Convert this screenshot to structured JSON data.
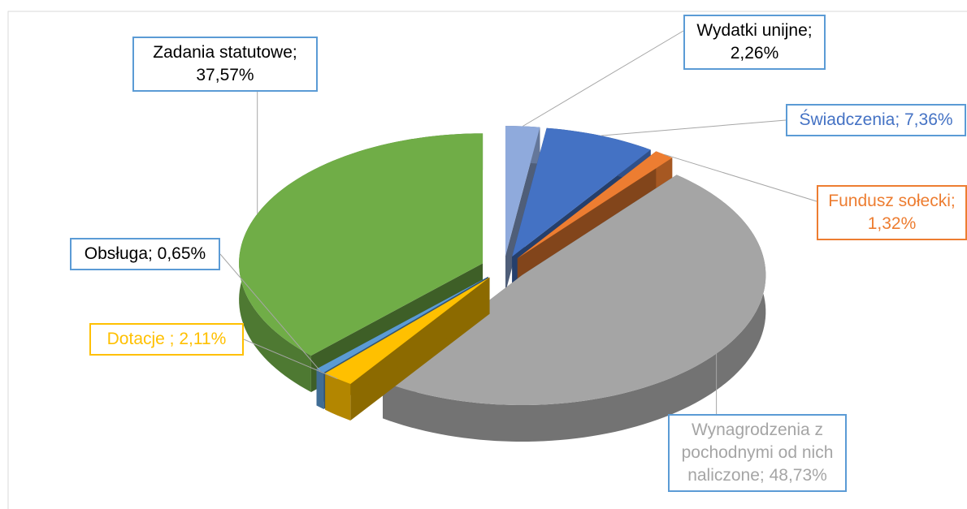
{
  "chart_data": {
    "type": "pie3d",
    "value_labels": [
      "Wydatki unijne; 2,26%",
      "Świadczenia; 7,36%",
      "Fundusz sołecki; 1,32%",
      "Wynagrodzenia z pochodnymi od nich naliczone; 48,73%",
      "Dotacje ; 2,11%",
      "Obsługa; 0,65%",
      "Zadania statutowe; 37,57%"
    ],
    "values": [
      2.26,
      7.36,
      1.32,
      48.73,
      2.11,
      0.65,
      37.57
    ],
    "colors": [
      "#8faadc",
      "#4472c4",
      "#ed7d31",
      "#a5a5a5",
      "#ffc000",
      "#5b9bd5",
      "#70ad47"
    ],
    "label_colors": [
      "#000000",
      "#4472c4",
      "#ed7d31",
      "#a5a5a5",
      "#ffc000",
      "#000000",
      "#000000"
    ]
  }
}
